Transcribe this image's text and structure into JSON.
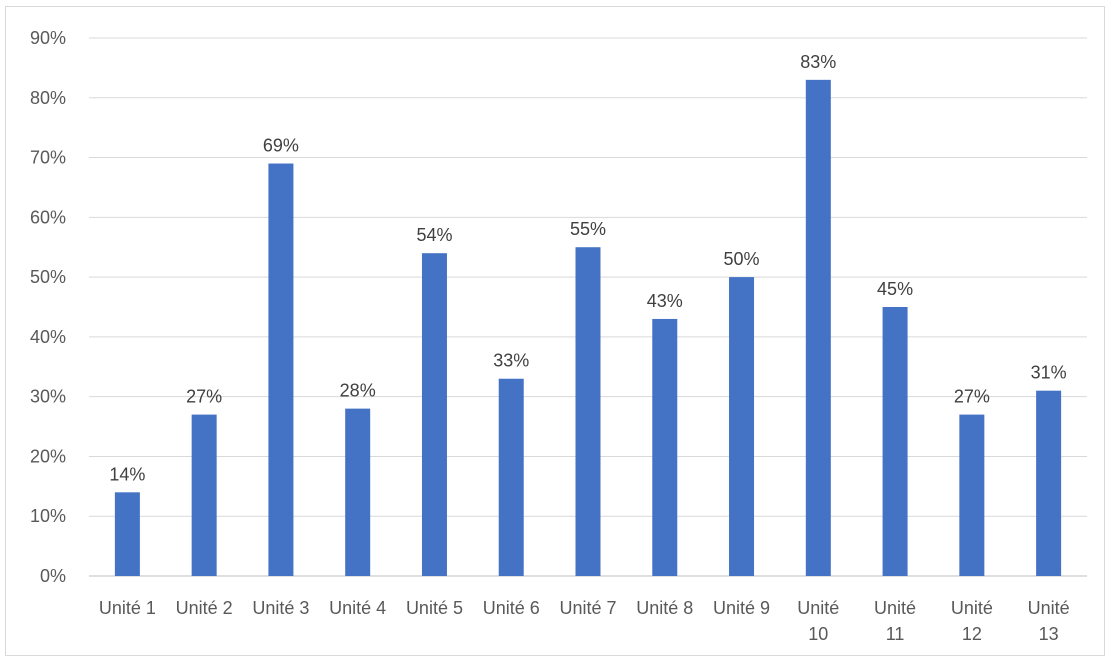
{
  "chart_data": {
    "type": "bar",
    "title": "",
    "xlabel": "",
    "ylabel": "",
    "categories": [
      "Unité 1",
      "Unité 2",
      "Unité 3",
      "Unité 4",
      "Unité 5",
      "Unité 6",
      "Unité 7",
      "Unité 8",
      "Unité 9",
      "Unité 10",
      "Unité 11",
      "Unité 12",
      "Unité 13"
    ],
    "values": [
      14,
      27,
      69,
      28,
      54,
      33,
      55,
      43,
      50,
      83,
      45,
      27,
      31
    ],
    "data_labels": [
      "14%",
      "27%",
      "69%",
      "28%",
      "54%",
      "33%",
      "55%",
      "43%",
      "50%",
      "83%",
      "45%",
      "27%",
      "31%"
    ],
    "y_ticks": [
      "0%",
      "10%",
      "20%",
      "30%",
      "40%",
      "50%",
      "60%",
      "70%",
      "80%",
      "90%"
    ],
    "ylim": [
      0,
      90
    ],
    "y_unit": "%",
    "grid": true,
    "legend": "none",
    "bar_color": "#4472C4",
    "grid_color": "#d9d9d9",
    "axis_color": "#bfbfbf"
  }
}
